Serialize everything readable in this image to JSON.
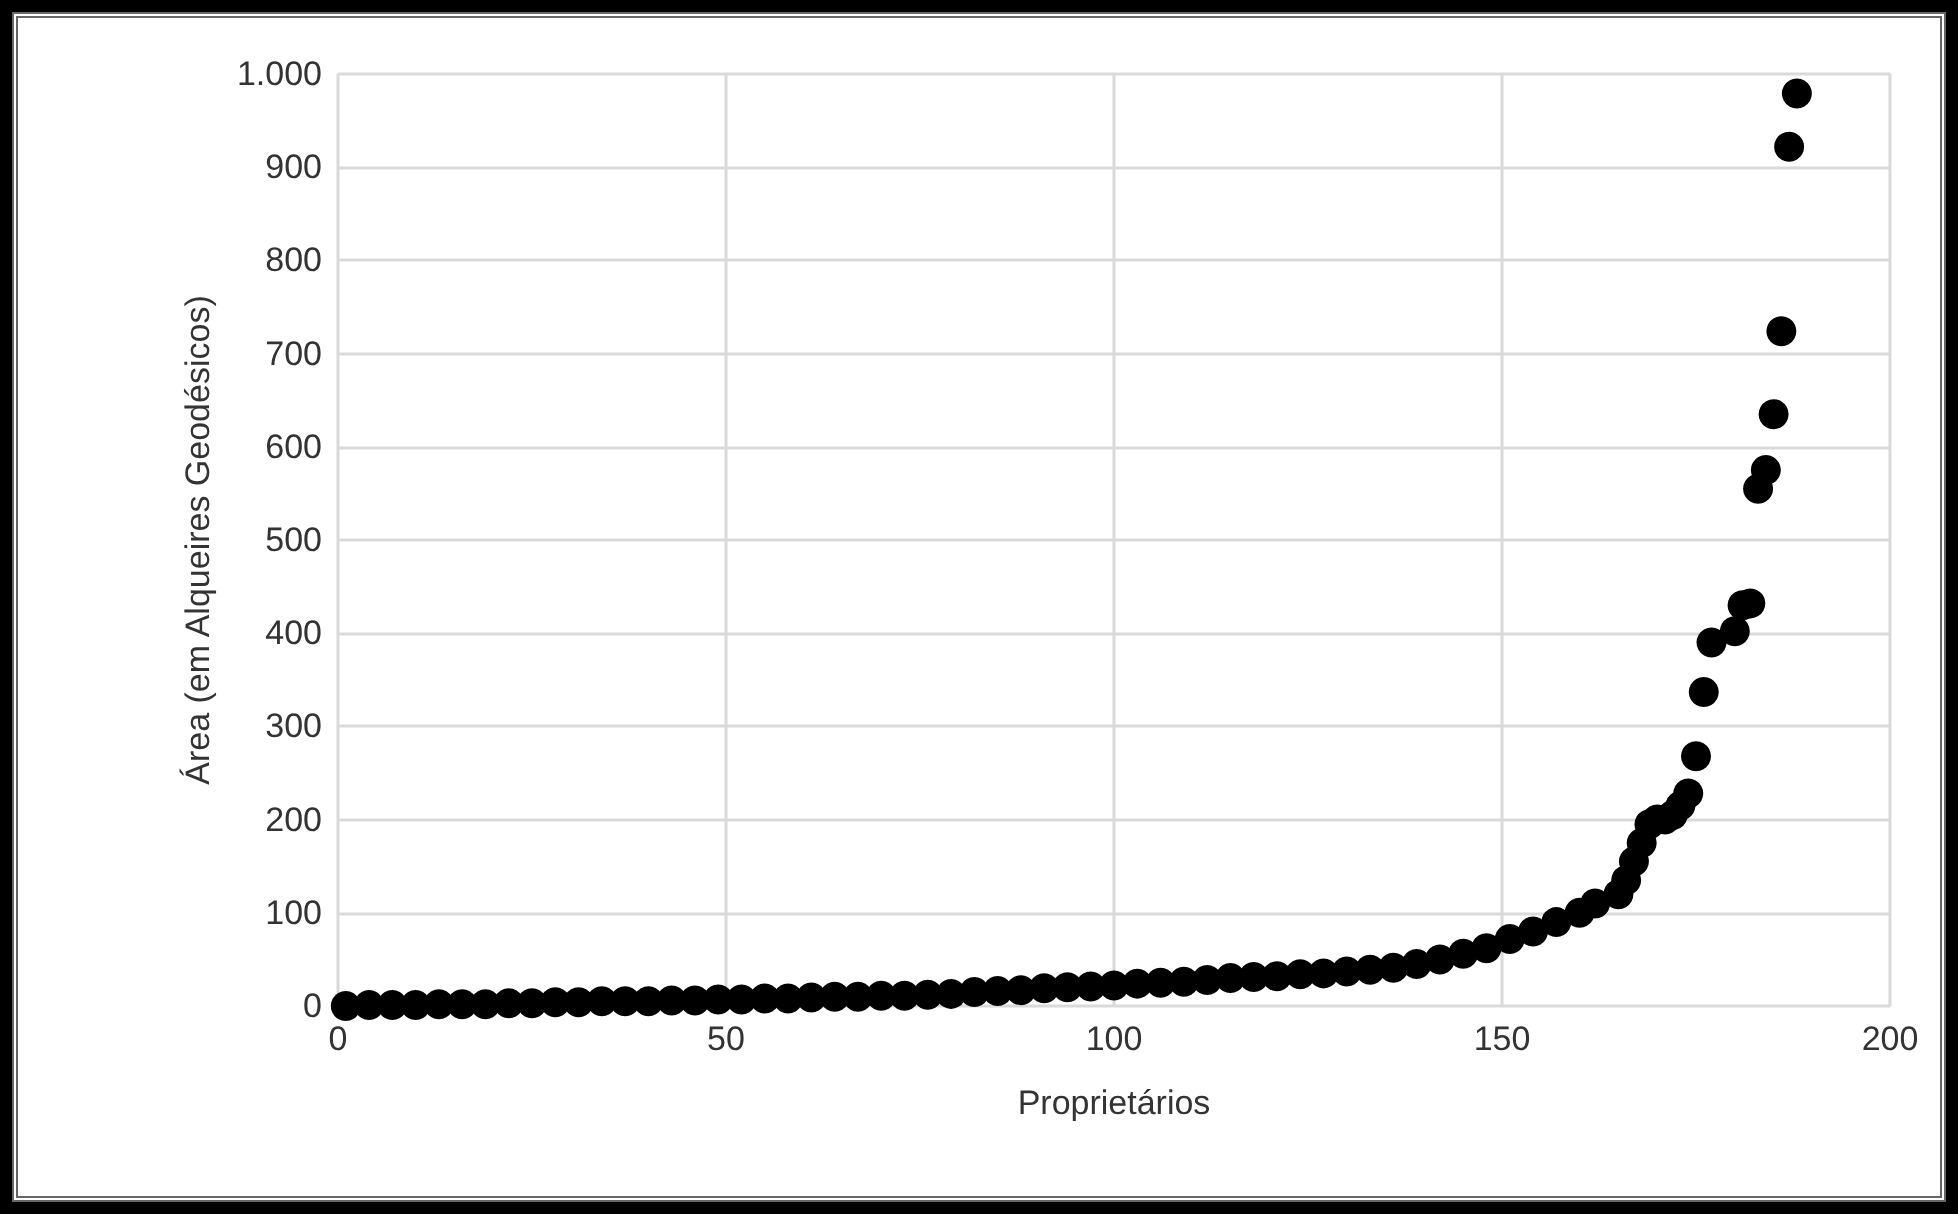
{
  "chart_data": {
    "type": "scatter",
    "xlabel": "Proprietários",
    "ylabel": "Área (em Alqueires Geodésicos)",
    "x": [
      1,
      4,
      7,
      10,
      13,
      16,
      19,
      22,
      25,
      28,
      31,
      34,
      37,
      40,
      43,
      46,
      49,
      52,
      55,
      58,
      61,
      64,
      67,
      70,
      73,
      76,
      79,
      82,
      85,
      88,
      91,
      94,
      97,
      100,
      103,
      106,
      109,
      112,
      115,
      118,
      121,
      124,
      127,
      130,
      133,
      136,
      139,
      142,
      145,
      148,
      151,
      154,
      157,
      160,
      162,
      165,
      166,
      167,
      168,
      169,
      170,
      171,
      172,
      173,
      174,
      175,
      176,
      177,
      180,
      181,
      182,
      183,
      184,
      185,
      186,
      187,
      188
    ],
    "series": [
      {
        "color": "#000000",
        "values": [
          0,
          1,
          1,
          1,
          2,
          2,
          2,
          3,
          3,
          4,
          4,
          5,
          5,
          5,
          6,
          6,
          7,
          7,
          8,
          8,
          9,
          10,
          10,
          11,
          11,
          12,
          13,
          15,
          16,
          17,
          19,
          20,
          21,
          22,
          24,
          25,
          26,
          28,
          30,
          31,
          32,
          34,
          35,
          37,
          39,
          41,
          45,
          50,
          56,
          62,
          72,
          80,
          90,
          100,
          110,
          120,
          135,
          155,
          175,
          195,
          200,
          200,
          205,
          215,
          228,
          268,
          337,
          390,
          402,
          430,
          432,
          555,
          575,
          635,
          724,
          922,
          979
        ]
      }
    ],
    "xlim": [
      0,
      200
    ],
    "xticks": [
      0,
      50,
      100,
      150,
      200
    ],
    "ylim": [
      0,
      1000
    ],
    "yticks": [
      0,
      100,
      200,
      300,
      400,
      500,
      600,
      700,
      800,
      900,
      {
        "value": 1000,
        "label": "1.000"
      }
    ],
    "grid": true,
    "marker": "circle"
  }
}
